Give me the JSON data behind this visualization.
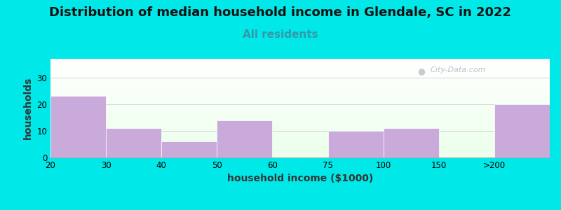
{
  "title": "Distribution of median household income in Glendale, SC in 2022",
  "subtitle": "All residents",
  "xlabel": "household income ($1000)",
  "ylabel": "households",
  "bar_labels": [
    "20",
    "30",
    "40",
    "50",
    "60",
    "75",
    "100",
    "150",
    ">200"
  ],
  "bar_values": [
    23,
    11,
    6,
    14,
    0,
    10,
    11,
    0,
    20
  ],
  "bar_color": "#c9aada",
  "bar_edgecolor": "#c9aada",
  "background_color": "#00e8e8",
  "ylim": [
    0,
    37
  ],
  "yticks": [
    0,
    10,
    20,
    30
  ],
  "title_fontsize": 13,
  "subtitle_fontsize": 11,
  "subtitle_color": "#3399aa",
  "axis_label_fontsize": 10,
  "watermark": "City-Data.com",
  "tick_positions": [
    0,
    1,
    2,
    3,
    4,
    5,
    6,
    7,
    8
  ],
  "bar_left_edges": [
    0,
    1,
    2,
    3,
    4,
    5,
    6,
    7,
    8
  ],
  "bar_widths": [
    1,
    1,
    1,
    1,
    1,
    1,
    1,
    1,
    1
  ]
}
